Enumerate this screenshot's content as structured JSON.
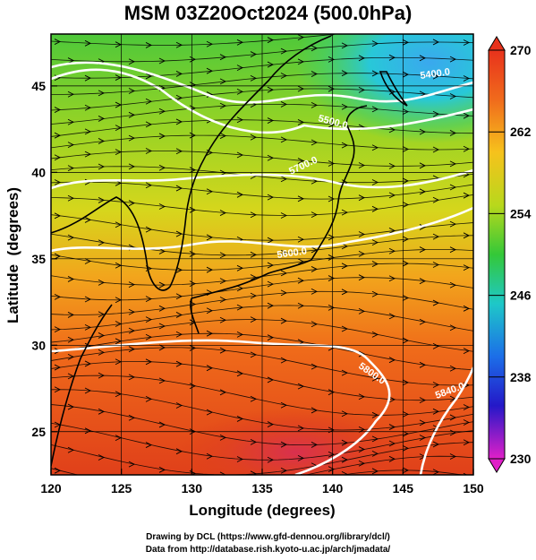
{
  "title": "MSM 03Z20Oct2024 (500.0hPa)",
  "credits": {
    "line1": "Drawing by DCL (https://www.gfd-dennou.org/library/dcl/)",
    "line2": "Data from http://database.rish.kyoto-u.ac.jp/arch/jmadata/"
  },
  "map": {
    "x_axis": {
      "label": "Longitude (degrees)",
      "range": [
        120,
        150
      ],
      "ticks": [
        "120",
        "125",
        "130",
        "135",
        "140",
        "145",
        "150"
      ]
    },
    "y_axis": {
      "label": "Latitude  (degrees)",
      "range": [
        22.5,
        48
      ],
      "ticks": [
        "25",
        "30",
        "35",
        "40",
        "45"
      ]
    },
    "contour_labels": [
      "5400.0",
      "5500.0",
      "5700.0",
      "5600.0",
      "5800.0",
      "5840.0"
    ],
    "colorbar": {
      "min": 230,
      "max": 270,
      "ticks": [
        "270",
        "262",
        "254",
        "246",
        "238",
        "230"
      ]
    }
  }
}
